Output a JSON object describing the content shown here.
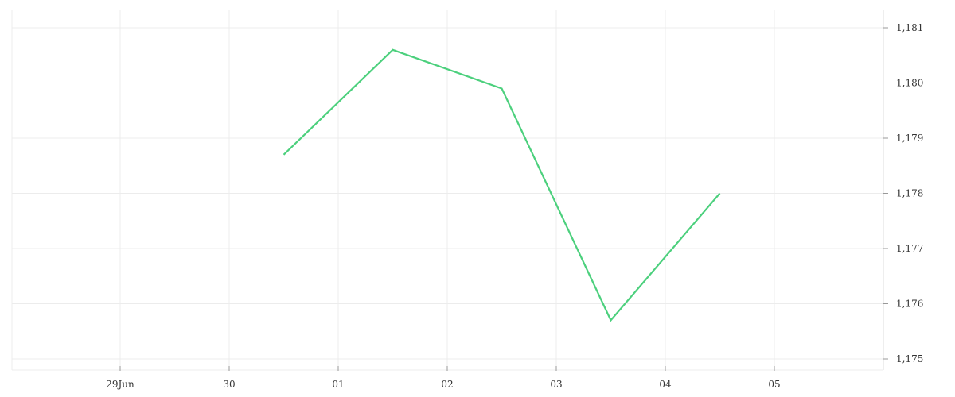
{
  "chart_data": {
    "type": "line",
    "title": "",
    "xlabel": "",
    "ylabel": "",
    "x_ticks": [
      "29Jun",
      "30",
      "01",
      "02",
      "03",
      "04",
      "05"
    ],
    "y_ticks": [
      "1,175",
      "1,176",
      "1,177",
      "1,178",
      "1,179",
      "1,180",
      "1,181"
    ],
    "ylim": [
      1174.97,
      1181.2
    ],
    "grid": true,
    "legend": "none",
    "series": [
      {
        "color": "#4cd07d",
        "points": [
          {
            "x": "30/01 midpoint",
            "y": 1178.7
          },
          {
            "x": "01/02 midpoint",
            "y": 1180.6
          },
          {
            "x": "02/03 midpoint",
            "y": 1179.9
          },
          {
            "x": "03/04 midpoint",
            "y": 1175.7
          },
          {
            "x": "04/05 midpoint",
            "y": 1178.0
          }
        ],
        "x_index": [
          1.5,
          2.5,
          3.5,
          4.5,
          5.5
        ],
        "values": [
          1178.7,
          1180.6,
          1179.9,
          1175.7,
          1178.0
        ]
      }
    ]
  }
}
